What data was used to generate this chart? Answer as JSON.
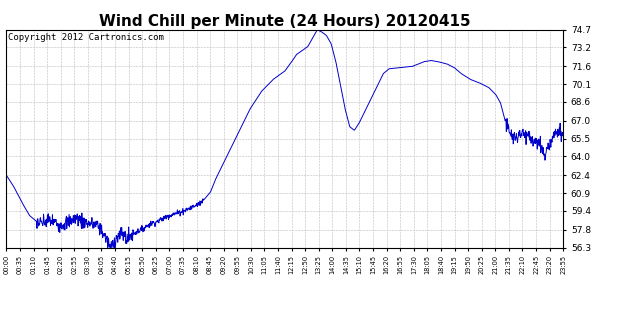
{
  "title": "Wind Chill per Minute (24 Hours) 20120415",
  "copyright_text": "Copyright 2012 Cartronics.com",
  "line_color": "#0000CC",
  "background_color": "#ffffff",
  "grid_color": "#bbbbbb",
  "ylim": [
    56.3,
    74.7
  ],
  "yticks": [
    56.3,
    57.8,
    59.4,
    60.9,
    62.4,
    64.0,
    65.5,
    67.0,
    68.6,
    70.1,
    71.6,
    73.2,
    74.7
  ],
  "title_fontsize": 11,
  "copyright_fontsize": 6.5,
  "xtick_labels": [
    "00:00",
    "00:35",
    "01:10",
    "01:45",
    "02:20",
    "02:55",
    "03:30",
    "04:05",
    "04:40",
    "05:15",
    "05:50",
    "06:25",
    "07:00",
    "07:35",
    "08:10",
    "08:45",
    "09:20",
    "09:55",
    "10:30",
    "11:05",
    "11:40",
    "12:15",
    "12:50",
    "13:25",
    "14:00",
    "14:35",
    "15:10",
    "15:45",
    "16:20",
    "16:55",
    "17:30",
    "18:05",
    "18:40",
    "19:15",
    "19:50",
    "20:25",
    "21:00",
    "21:35",
    "22:10",
    "22:45",
    "23:20",
    "23:55"
  ]
}
